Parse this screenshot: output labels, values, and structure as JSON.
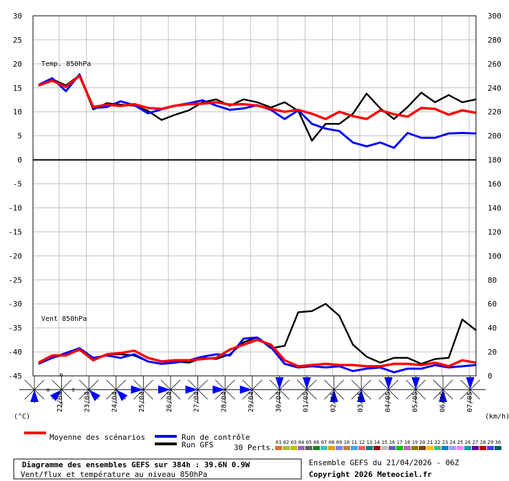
{
  "unit_left": "(°C)",
  "unit_right": "(km/h)",
  "legend": {
    "mean": "Moyenne des scénarios",
    "control": "Run de contrôle",
    "gfs": "Run GFS",
    "perts_label": "30 Perts.",
    "pert_ids": [
      "01",
      "02",
      "03",
      "04",
      "05",
      "06",
      "07",
      "08",
      "09",
      "10",
      "11",
      "12",
      "13",
      "14",
      "15",
      "16",
      "17",
      "18",
      "19",
      "20",
      "21",
      "22",
      "23",
      "24",
      "25",
      "26",
      "27",
      "28",
      "29",
      "30"
    ],
    "pert_colors": [
      "#e07030",
      "#a0c040",
      "#c0c000",
      "#a060c0",
      "#606060",
      "#208020",
      "#40c0c0",
      "#e0a000",
      "#8080ff",
      "#c08040",
      "#40a0ff",
      "#ff6060",
      "#008080",
      "#a00000",
      "#c0c0c0",
      "#6060c0",
      "#00c000",
      "#c060c0",
      "#808000",
      "#804000",
      "#ffc000",
      "#40c080",
      "#0080c0",
      "#a0a0ff",
      "#ff80ff",
      "#00a0a0",
      "#6000a0",
      "#c00000",
      "#4040ff",
      "#006060"
    ]
  },
  "footer": {
    "title": "Diagramme des ensembles GEFS sur 384h : 39.6N 0.9W",
    "subtitle": "Vent/flux et température au niveau 850hPa",
    "run_info": "Ensemble GEFS du 21/04/2026 - 06Z",
    "copyright": "Copyright 2026 Meteociel.fr"
  },
  "colors": {
    "mean": "#ff0000",
    "control": "#0000ff",
    "gfs": "#000000",
    "grid": "#c0c0c0",
    "wind_fill": "#0000ff"
  },
  "chart_data": {
    "type": "line",
    "x_dates": [
      "22/04",
      "23/04",
      "24/04",
      "25/04",
      "26/04",
      "27/04",
      "28/04",
      "29/04",
      "30/04",
      "01/05",
      "02/05",
      "03/05",
      "04/05",
      "05/05",
      "06/05",
      "07/05"
    ],
    "forecast_hours": 384,
    "left_axis": {
      "ticks": [
        30,
        25,
        20,
        15,
        10,
        5,
        0,
        -5,
        -10,
        -15,
        -20,
        -25,
        -30,
        -35,
        -40,
        -45
      ],
      "range": [
        -45,
        30
      ]
    },
    "right_axis": {
      "ticks": [
        300,
        280,
        260,
        240,
        220,
        200,
        180,
        160,
        140,
        120,
        100,
        80,
        60,
        40,
        20,
        0
      ],
      "range": [
        0,
        300
      ]
    },
    "panels": [
      {
        "label": "Temp. 850hPa",
        "units": "°C",
        "x_hours": [
          0,
          12,
          24,
          36,
          48,
          60,
          72,
          84,
          96,
          108,
          120,
          132,
          144,
          156,
          168,
          180,
          192,
          204,
          216,
          228,
          240,
          252,
          264,
          276,
          288,
          300,
          312,
          324,
          336,
          348,
          360,
          372,
          384
        ],
        "series": [
          {
            "name": "Moyenne des scénarios",
            "values": [
              15.5,
              16.5,
              15.2,
              17.5,
              11.0,
              11.5,
              11.2,
              11.6,
              10.8,
              10.6,
              11.3,
              11.6,
              11.7,
              12.0,
              11.5,
              11.6,
              11.3,
              10.6,
              10.0,
              10.4,
              9.6,
              8.5,
              10.0,
              9.1,
              8.5,
              10.3,
              9.5,
              9.0,
              10.8,
              10.6,
              9.4,
              10.3,
              9.8
            ]
          },
          {
            "name": "Run de contrôle",
            "values": [
              15.6,
              17.0,
              14.3,
              17.8,
              10.8,
              11.0,
              12.2,
              11.4,
              9.7,
              10.5,
              11.3,
              11.8,
              12.4,
              11.3,
              10.4,
              10.7,
              11.4,
              10.4,
              8.5,
              10.3,
              7.5,
              6.5,
              6.0,
              3.6,
              2.8,
              3.6,
              2.5,
              5.6,
              4.6,
              4.6,
              5.5,
              5.6,
              5.5
            ]
          },
          {
            "name": "Run GFS",
            "values": [
              15.4,
              16.8,
              15.5,
              17.6,
              10.5,
              11.8,
              11.5,
              11.3,
              10.2,
              8.3,
              9.4,
              10.3,
              12.0,
              12.6,
              11.3,
              12.6,
              12.0,
              10.9,
              12.0,
              10.2,
              4.0,
              7.5,
              7.5,
              9.6,
              13.8,
              10.7,
              8.5,
              11.0,
              14.0,
              12.0,
              13.5,
              12.0,
              12.6
            ]
          }
        ]
      },
      {
        "label": "Vent 850hPa",
        "units": "km/h",
        "x_hours": [
          0,
          12,
          24,
          36,
          48,
          60,
          72,
          84,
          96,
          108,
          120,
          132,
          144,
          156,
          168,
          180,
          192,
          204,
          216,
          228,
          240,
          252,
          264,
          276,
          288,
          300,
          312,
          324,
          336,
          348,
          360,
          372,
          384
        ],
        "series": [
          {
            "name": "Moyenne des scénarios",
            "values": [
              11,
              17,
              17,
              22,
              13,
              18,
              19,
              21,
              15,
              12,
              13,
              13,
              14,
              15,
              22,
              26,
              30,
              26,
              13,
              8,
              9,
              10,
              9,
              9,
              8,
              8,
              10,
              10,
              9,
              11,
              8,
              13,
              11
            ]
          },
          {
            "name": "Run de contrôle",
            "values": [
              10,
              15,
              19,
              23,
              15,
              17,
              15,
              18,
              12,
              10,
              11,
              13,
              16,
              18,
              17,
              31,
              32,
              24,
              10,
              7,
              8,
              7,
              8,
              4,
              6,
              7,
              3,
              6,
              6,
              9,
              7,
              8,
              9
            ]
          },
          {
            "name": "Run GFS",
            "values": [
              11,
              15,
              18,
              22,
              13,
              18,
              18,
              17,
              12,
              10,
              12,
              11,
              15,
              14,
              18,
              28,
              32,
              23,
              25,
              53,
              54,
              60,
              50,
              26,
              16,
              11,
              15,
              15,
              10,
              14,
              15,
              47,
              38
            ]
          }
        ]
      }
    ],
    "wind_roses": [
      {
        "date": "21/04",
        "dominant": "S"
      },
      {
        "date": "22/04",
        "dominant": "SW"
      },
      {
        "date": "23/04",
        "dominant": "SE"
      },
      {
        "date": "24/04",
        "dominant": "SE"
      },
      {
        "date": "25/04",
        "dominant": "W"
      },
      {
        "date": "26/04",
        "dominant": "W"
      },
      {
        "date": "27/04",
        "dominant": "W"
      },
      {
        "date": "28/04",
        "dominant": "W"
      },
      {
        "date": "29/04",
        "dominant": "W"
      },
      {
        "date": "30/04",
        "dominant": "N"
      },
      {
        "date": "01/05",
        "dominant": "N"
      },
      {
        "date": "02/05",
        "dominant": "S"
      },
      {
        "date": "03/05",
        "dominant": "S"
      },
      {
        "date": "04/05",
        "dominant": "N"
      },
      {
        "date": "05/05",
        "dominant": "N"
      },
      {
        "date": "06/05",
        "dominant": "S"
      },
      {
        "date": "07/05",
        "dominant": "N"
      }
    ],
    "compass_labels": [
      "N",
      "S",
      "E",
      "W"
    ]
  }
}
